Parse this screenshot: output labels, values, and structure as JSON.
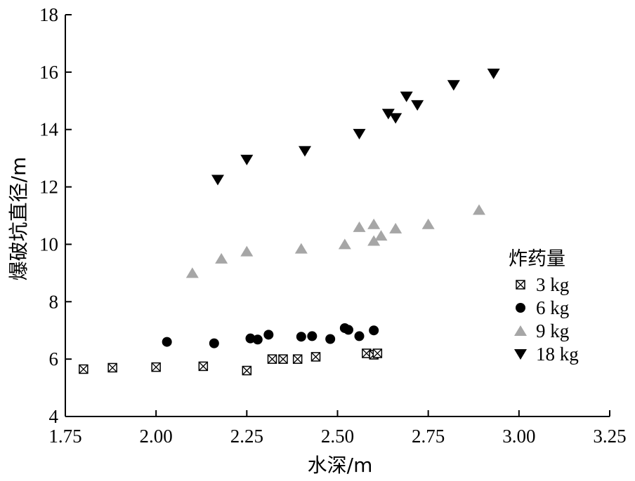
{
  "chart_data": {
    "type": "scatter",
    "xlabel": "水深/m",
    "ylabel": "爆破坑直径/m",
    "xlim": [
      1.75,
      3.25
    ],
    "ylim": [
      4,
      18
    ],
    "xticks": [
      "1.75",
      "2.00",
      "2.25",
      "2.50",
      "2.75",
      "3.00",
      "3.25"
    ],
    "yticks": [
      "4",
      "6",
      "8",
      "10",
      "12",
      "14",
      "16",
      "18"
    ],
    "grid": false,
    "legend": {
      "title": "炸药量",
      "position": "right"
    },
    "series": [
      {
        "name": "3 kg",
        "marker": "square-x",
        "color": "#000000",
        "points": [
          [
            1.8,
            5.65
          ],
          [
            1.88,
            5.7
          ],
          [
            2.0,
            5.72
          ],
          [
            2.13,
            5.75
          ],
          [
            2.25,
            5.6
          ],
          [
            2.32,
            6.0
          ],
          [
            2.35,
            6.0
          ],
          [
            2.39,
            6.0
          ],
          [
            2.44,
            6.08
          ],
          [
            2.58,
            6.2
          ],
          [
            2.6,
            6.15
          ],
          [
            2.61,
            6.2
          ]
        ]
      },
      {
        "name": "6 kg",
        "marker": "circle",
        "color": "#000000",
        "points": [
          [
            2.03,
            6.6
          ],
          [
            2.16,
            6.55
          ],
          [
            2.26,
            6.72
          ],
          [
            2.28,
            6.68
          ],
          [
            2.31,
            6.85
          ],
          [
            2.4,
            6.78
          ],
          [
            2.43,
            6.8
          ],
          [
            2.48,
            6.7
          ],
          [
            2.52,
            7.08
          ],
          [
            2.53,
            7.02
          ],
          [
            2.56,
            6.8
          ],
          [
            2.6,
            7.0
          ]
        ]
      },
      {
        "name": "9 kg",
        "marker": "triangle-up",
        "color": "#a6a6a6",
        "points": [
          [
            2.1,
            9.0
          ],
          [
            2.18,
            9.5
          ],
          [
            2.25,
            9.75
          ],
          [
            2.4,
            9.85
          ],
          [
            2.52,
            10.0
          ],
          [
            2.56,
            10.6
          ],
          [
            2.6,
            10.7
          ],
          [
            2.6,
            10.12
          ],
          [
            2.62,
            10.3
          ],
          [
            2.66,
            10.55
          ],
          [
            2.75,
            10.7
          ],
          [
            2.89,
            11.2
          ]
        ]
      },
      {
        "name": "18 kg",
        "marker": "triangle-down",
        "color": "#000000",
        "points": [
          [
            2.17,
            12.25
          ],
          [
            2.25,
            12.95
          ],
          [
            2.41,
            13.25
          ],
          [
            2.56,
            13.85
          ],
          [
            2.64,
            14.55
          ],
          [
            2.66,
            14.4
          ],
          [
            2.69,
            15.15
          ],
          [
            2.72,
            14.85
          ],
          [
            2.82,
            15.55
          ],
          [
            2.93,
            15.95
          ]
        ]
      }
    ]
  }
}
